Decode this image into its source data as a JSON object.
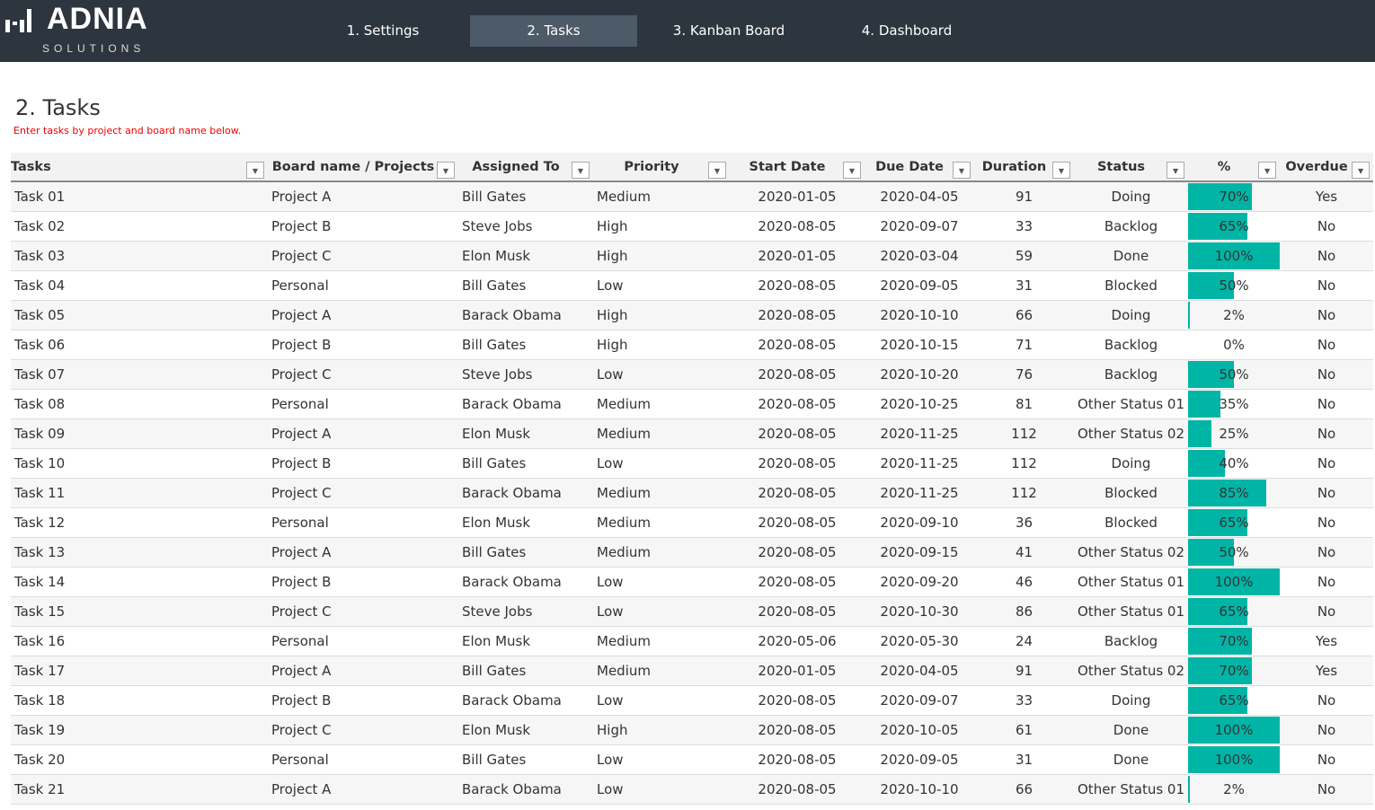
{
  "logo": {
    "name": "ADNIA",
    "sub": "SOLUTIONS"
  },
  "nav": [
    {
      "label": "1. Settings"
    },
    {
      "label": "2. Tasks",
      "active": true
    },
    {
      "label": "3. Kanban Board"
    },
    {
      "label": "4. Dashboard"
    }
  ],
  "page": {
    "title": "2. Tasks",
    "subtitle": "Enter tasks by project and board name below."
  },
  "colors": {
    "bar": "#00b5a5",
    "header_bg": "#2d353e",
    "subtitle": "#ee0000"
  },
  "columns": [
    "Tasks",
    "Board name / Projects",
    "Assigned To",
    "Priority",
    "Start Date",
    "Due Date",
    "Duration",
    "Status",
    "%",
    "Overdue"
  ],
  "rows": [
    [
      "Task 01",
      "Project A",
      "Bill Gates",
      "Medium",
      "2020-01-05",
      "2020-04-05",
      "91",
      "Doing",
      70,
      "Yes"
    ],
    [
      "Task 02",
      "Project B",
      "Steve Jobs",
      "High",
      "2020-08-05",
      "2020-09-07",
      "33",
      "Backlog",
      65,
      "No"
    ],
    [
      "Task 03",
      "Project C",
      "Elon Musk",
      "High",
      "2020-01-05",
      "2020-03-04",
      "59",
      "Done",
      100,
      "No"
    ],
    [
      "Task 04",
      "Personal",
      "Bill Gates",
      "Low",
      "2020-08-05",
      "2020-09-05",
      "31",
      "Blocked",
      50,
      "No"
    ],
    [
      "Task 05",
      "Project A",
      "Barack Obama",
      "High",
      "2020-08-05",
      "2020-10-10",
      "66",
      "Doing",
      2,
      "No"
    ],
    [
      "Task 06",
      "Project B",
      "Bill Gates",
      "High",
      "2020-08-05",
      "2020-10-15",
      "71",
      "Backlog",
      0,
      "No"
    ],
    [
      "Task 07",
      "Project C",
      "Steve Jobs",
      "Low",
      "2020-08-05",
      "2020-10-20",
      "76",
      "Backlog",
      50,
      "No"
    ],
    [
      "Task 08",
      "Personal",
      "Barack Obama",
      "Medium",
      "2020-08-05",
      "2020-10-25",
      "81",
      "Other Status 01",
      35,
      "No"
    ],
    [
      "Task 09",
      "Project A",
      "Elon Musk",
      "Medium",
      "2020-08-05",
      "2020-11-25",
      "112",
      "Other Status 02",
      25,
      "No"
    ],
    [
      "Task 10",
      "Project B",
      "Bill Gates",
      "Low",
      "2020-08-05",
      "2020-11-25",
      "112",
      "Doing",
      40,
      "No"
    ],
    [
      "Task 11",
      "Project C",
      "Barack Obama",
      "Medium",
      "2020-08-05",
      "2020-11-25",
      "112",
      "Blocked",
      85,
      "No"
    ],
    [
      "Task 12",
      "Personal",
      "Elon Musk",
      "Medium",
      "2020-08-05",
      "2020-09-10",
      "36",
      "Blocked",
      65,
      "No"
    ],
    [
      "Task 13",
      "Project A",
      "Bill Gates",
      "Medium",
      "2020-08-05",
      "2020-09-15",
      "41",
      "Other Status 02",
      50,
      "No"
    ],
    [
      "Task 14",
      "Project B",
      "Barack Obama",
      "Low",
      "2020-08-05",
      "2020-09-20",
      "46",
      "Other Status 01",
      100,
      "No"
    ],
    [
      "Task 15",
      "Project C",
      "Steve Jobs",
      "Low",
      "2020-08-05",
      "2020-10-30",
      "86",
      "Other Status 01",
      65,
      "No"
    ],
    [
      "Task 16",
      "Personal",
      "Elon Musk",
      "Medium",
      "2020-05-06",
      "2020-05-30",
      "24",
      "Backlog",
      70,
      "Yes"
    ],
    [
      "Task 17",
      "Project A",
      "Bill Gates",
      "Medium",
      "2020-01-05",
      "2020-04-05",
      "91",
      "Other Status 02",
      70,
      "Yes"
    ],
    [
      "Task 18",
      "Project B",
      "Barack Obama",
      "Low",
      "2020-08-05",
      "2020-09-07",
      "33",
      "Doing",
      65,
      "No"
    ],
    [
      "Task 19",
      "Project C",
      "Elon Musk",
      "High",
      "2020-08-05",
      "2020-10-05",
      "61",
      "Done",
      100,
      "No"
    ],
    [
      "Task 20",
      "Personal",
      "Bill Gates",
      "Low",
      "2020-08-05",
      "2020-09-05",
      "31",
      "Done",
      100,
      "No"
    ],
    [
      "Task 21",
      "Project A",
      "Barack Obama",
      "Low",
      "2020-08-05",
      "2020-10-10",
      "66",
      "Other Status 01",
      2,
      "No"
    ]
  ]
}
